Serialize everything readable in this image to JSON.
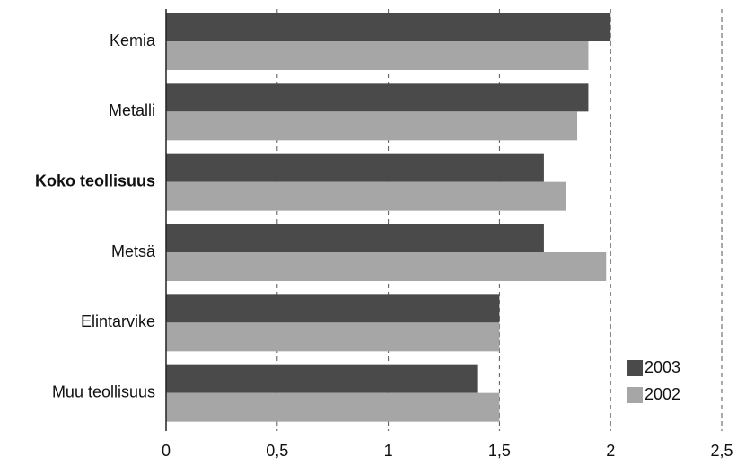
{
  "chart_data": {
    "type": "bar",
    "orientation": "horizontal",
    "categories": [
      "Kemia",
      "Metalli",
      "Koko teollisuus",
      "Metsä",
      "Elintarvike",
      "Muu teollisuus"
    ],
    "emphasized_category": "Koko teollisuus",
    "series": [
      {
        "name": "2003",
        "values": [
          2.0,
          1.9,
          1.7,
          1.7,
          1.5,
          1.4
        ],
        "color": "#4a4a4a"
      },
      {
        "name": "2002",
        "values": [
          1.9,
          1.85,
          1.8,
          1.98,
          1.5,
          1.5
        ],
        "color": "#a6a6a6"
      }
    ],
    "xlim": [
      0,
      2.5
    ],
    "x_ticks": [
      0,
      0.5,
      1,
      1.5,
      2,
      2.5
    ],
    "x_tick_labels": [
      "0",
      "0,5",
      "1",
      "1,5",
      "2",
      "2,5"
    ],
    "grid": "vertical dashed",
    "legend_position": "bottom-right",
    "title": "",
    "xlabel": "",
    "ylabel": ""
  }
}
